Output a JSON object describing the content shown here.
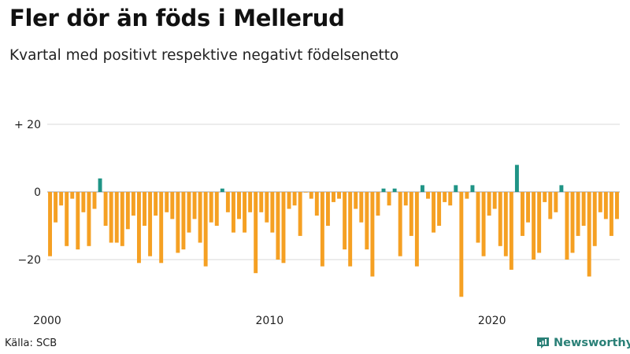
{
  "header": {
    "title": "Fler dör än föds i Mellerud",
    "subtitle": "Kvartal med positivt respektive negativt födelsenetto"
  },
  "footer": {
    "source": "Källa: SCB",
    "brand": "Newsworthy"
  },
  "colors": {
    "positive": "#1f9486",
    "negative": "#f5a023",
    "brand": "#2a8077",
    "grid": "#d9d9d9"
  },
  "chart_data": {
    "type": "bar",
    "title": "Fler dör än föds i Mellerud",
    "subtitle": "Kvartal med positivt respektive negativt födelsenetto",
    "xlabel": "",
    "ylabel": "",
    "ylim": [
      -32,
      24
    ],
    "grid": true,
    "y_ticks": [
      {
        "value": 20,
        "label": "+ 20"
      },
      {
        "value": 0,
        "label": "0"
      },
      {
        "value": -20,
        "label": "−20"
      }
    ],
    "x_ticks": [
      {
        "index": 0,
        "label": "2000"
      },
      {
        "index": 40,
        "label": "2010"
      },
      {
        "index": 80,
        "label": "2020"
      }
    ],
    "start": "2000 Q1",
    "frequency": "quarterly",
    "values": [
      -19,
      -9,
      -4,
      -16,
      -2,
      -17,
      -6,
      -16,
      -5,
      4,
      -10,
      -15,
      -15,
      -16,
      -11,
      -7,
      -21,
      -10,
      -19,
      -7,
      -21,
      -6,
      -8,
      -18,
      -17,
      -12,
      -8,
      -15,
      -22,
      -9,
      -10,
      1,
      -6,
      -12,
      -8,
      -12,
      -6,
      -24,
      -6,
      -9,
      -12,
      -20,
      -21,
      -5,
      -4,
      -13,
      0,
      -2,
      -7,
      -22,
      -10,
      -3,
      -2,
      -17,
      -22,
      -5,
      -9,
      -17,
      -25,
      -7,
      1,
      -4,
      1,
      -19,
      -4,
      -13,
      -22,
      2,
      -2,
      -12,
      -10,
      -3,
      -4,
      2,
      -31,
      -2,
      2,
      -15,
      -19,
      -7,
      -5,
      -16,
      -19,
      -23,
      8,
      -13,
      -9,
      -20,
      -18,
      -3,
      -8,
      -6,
      2,
      -20,
      -18,
      -13,
      -10,
      -25,
      -16,
      -6,
      -8,
      -13,
      -8
    ]
  }
}
